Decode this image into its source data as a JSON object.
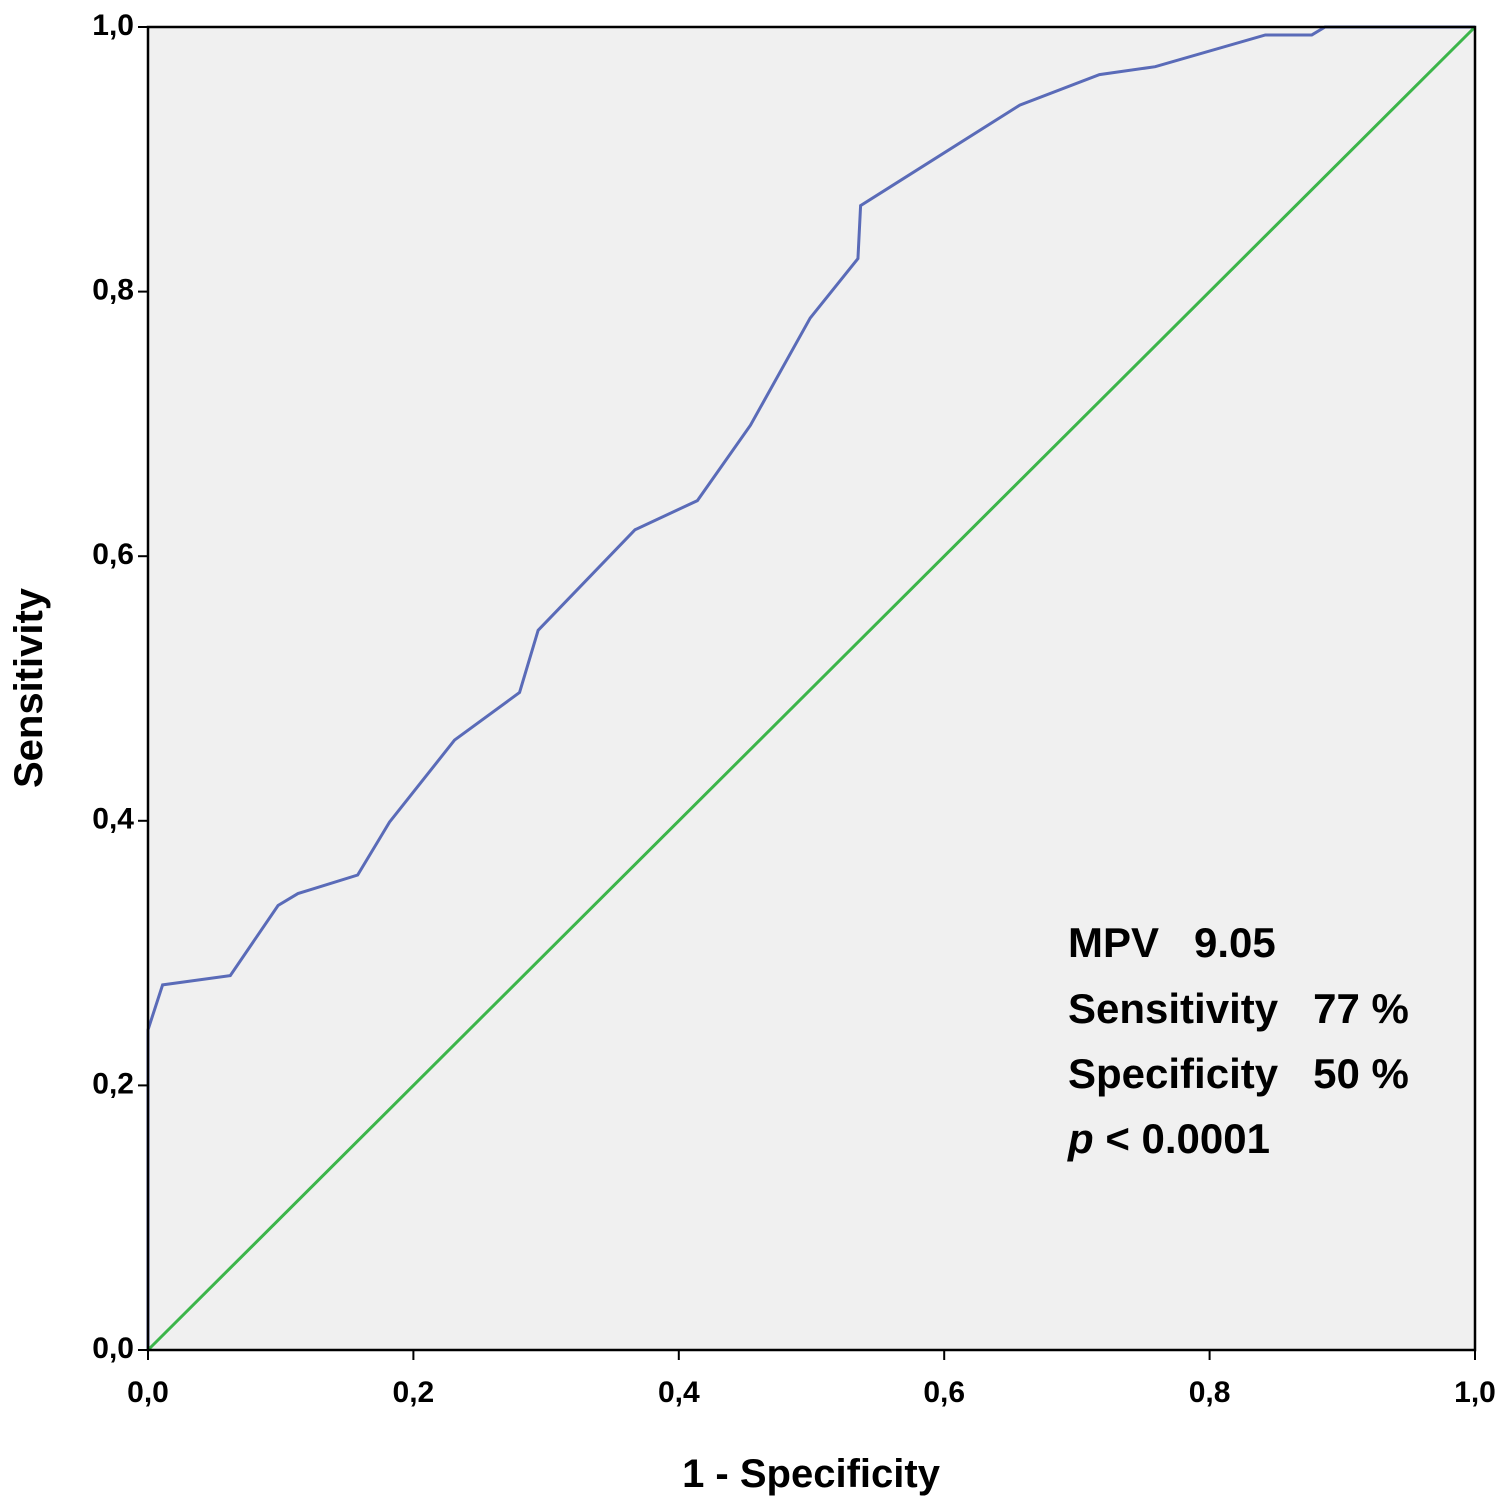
{
  "chart_data": {
    "type": "line",
    "x_label": "1 - Specificity",
    "y_label": "Sensitivity",
    "xlim": [
      0,
      1
    ],
    "ylim": [
      0,
      1
    ],
    "xticks": [
      {
        "value": 0,
        "label": "0,0"
      },
      {
        "value": 0.2,
        "label": "0,2"
      },
      {
        "value": 0.4,
        "label": "0,4"
      },
      {
        "value": 0.6,
        "label": "0,6"
      },
      {
        "value": 0.8,
        "label": "0,8"
      },
      {
        "value": 1,
        "label": "1,0"
      }
    ],
    "yticks": [
      {
        "value": 0,
        "label": "0,0"
      },
      {
        "value": 0.2,
        "label": "0,2"
      },
      {
        "value": 0.4,
        "label": "0,4"
      },
      {
        "value": 0.6,
        "label": "0,6"
      },
      {
        "value": 0.8,
        "label": "0,8"
      },
      {
        "value": 1,
        "label": "1,0"
      }
    ],
    "series": [
      {
        "color": "#5a6bb8",
        "x": [
          0,
          0,
          0.011,
          0.062,
          0.098,
          0.113,
          0.158,
          0.182,
          0.231,
          0.28,
          0.294,
          0.367,
          0.414,
          0.454,
          0.499,
          0.535,
          0.537,
          0.657,
          0.717,
          0.759,
          0.842,
          0.877,
          0.887,
          1
        ],
        "values": [
          0,
          0.242,
          0.276,
          0.283,
          0.336,
          0.345,
          0.359,
          0.399,
          0.461,
          0.497,
          0.544,
          0.62,
          0.642,
          0.699,
          0.78,
          0.825,
          0.865,
          0.941,
          0.964,
          0.97,
          0.994,
          0.994,
          1,
          1
        ]
      },
      {
        "color": "#3cb54a",
        "x": [
          0,
          1
        ],
        "values": [
          0,
          1
        ]
      }
    ],
    "annotations": [
      "MPV   9.05",
      "Sensitivity   77 %",
      "Specificity   50 %"
    ],
    "p_annotation": {
      "symbol": "p",
      "text": "< 0.0001"
    }
  }
}
